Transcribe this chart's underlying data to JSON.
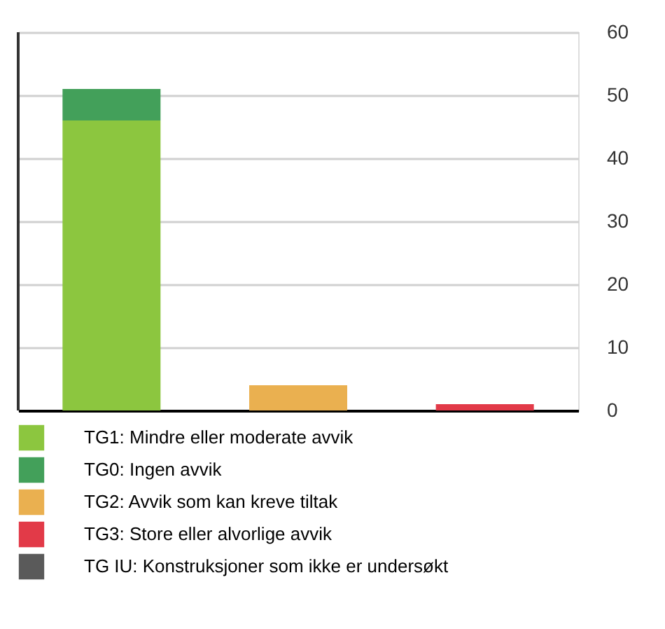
{
  "chart_data": {
    "type": "bar",
    "stacked": true,
    "categories": [
      null,
      null,
      null
    ],
    "series": [
      {
        "name": "TG1: Mindre eller moderate avvik",
        "color": "#8cc63f",
        "values": [
          46,
          0,
          0
        ]
      },
      {
        "name": "TG0: Ingen avvik",
        "color": "#43a05a",
        "values": [
          5,
          0,
          0
        ]
      },
      {
        "name": "TG2: Avvik som kan kreve tiltak",
        "color": "#eab050",
        "values": [
          0,
          4,
          0
        ]
      },
      {
        "name": "TG3: Store eller alvorlige avvik",
        "color": "#e23a48",
        "values": [
          0,
          0,
          1
        ]
      },
      {
        "name": "TG IU: Konstruksjoner som ikke er undersøkt",
        "color": "#5a5a5a",
        "values": [
          0,
          0,
          0
        ]
      }
    ],
    "ylim": [
      0,
      60
    ],
    "yticks": [
      0,
      10,
      20,
      30,
      40,
      50,
      60
    ],
    "grid": "y",
    "legend": "bottom"
  }
}
